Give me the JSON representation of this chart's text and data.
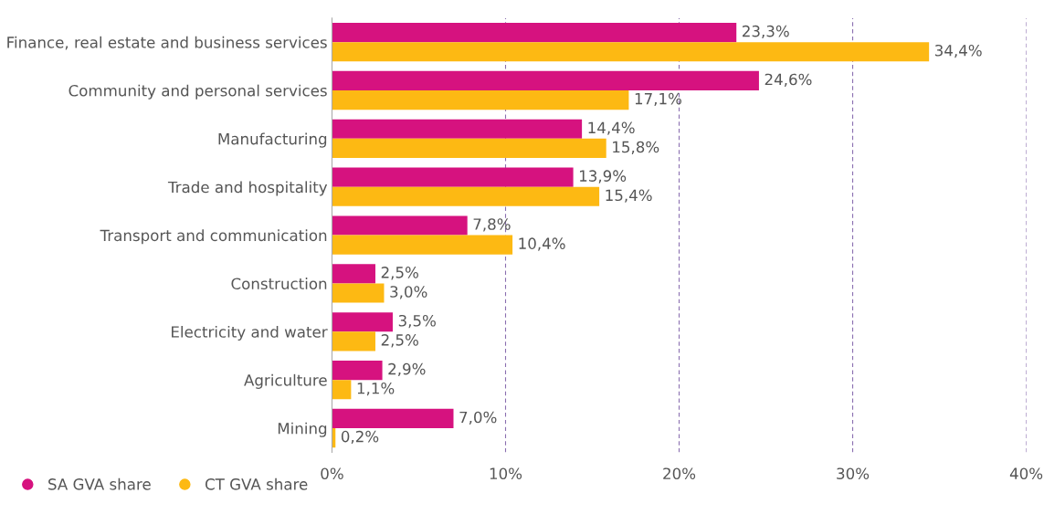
{
  "chart_data": {
    "type": "bar",
    "orientation": "horizontal",
    "categories": [
      "Finance, real estate and business services",
      "Community and personal services",
      "Manufacturing",
      "Trade and hospitality",
      "Transport and communication",
      "Construction",
      "Electricity and water",
      "Agriculture",
      "Mining"
    ],
    "series": [
      {
        "name": "SA GVA share",
        "color": "#d6127f",
        "values": [
          23.3,
          24.6,
          14.4,
          13.9,
          7.8,
          2.5,
          3.5,
          2.9,
          7.0
        ],
        "value_labels": [
          "23,3%",
          "24,6%",
          "14,4%",
          "13,9%",
          "7,8%",
          "2,5%",
          "3,5%",
          "2,9%",
          "7,0%"
        ]
      },
      {
        "name": "CT GVA share",
        "color": "#fdb913",
        "values": [
          34.4,
          17.1,
          15.8,
          15.4,
          10.4,
          3.0,
          2.5,
          1.1,
          0.2
        ],
        "value_labels": [
          "34,4%",
          "17,1%",
          "15,8%",
          "15,4%",
          "10,4%",
          "3,0%",
          "2,5%",
          "1,1%",
          "0,2%"
        ]
      }
    ],
    "xlim": [
      0,
      40
    ],
    "xticks": [
      {
        "value": 0,
        "label": "0%"
      },
      {
        "value": 10,
        "label": "10%"
      },
      {
        "value": 20,
        "label": "20%"
      },
      {
        "value": 30,
        "label": "30%"
      },
      {
        "value": 40,
        "label": "40%"
      }
    ],
    "grid": "x",
    "legend": "bottom left"
  }
}
